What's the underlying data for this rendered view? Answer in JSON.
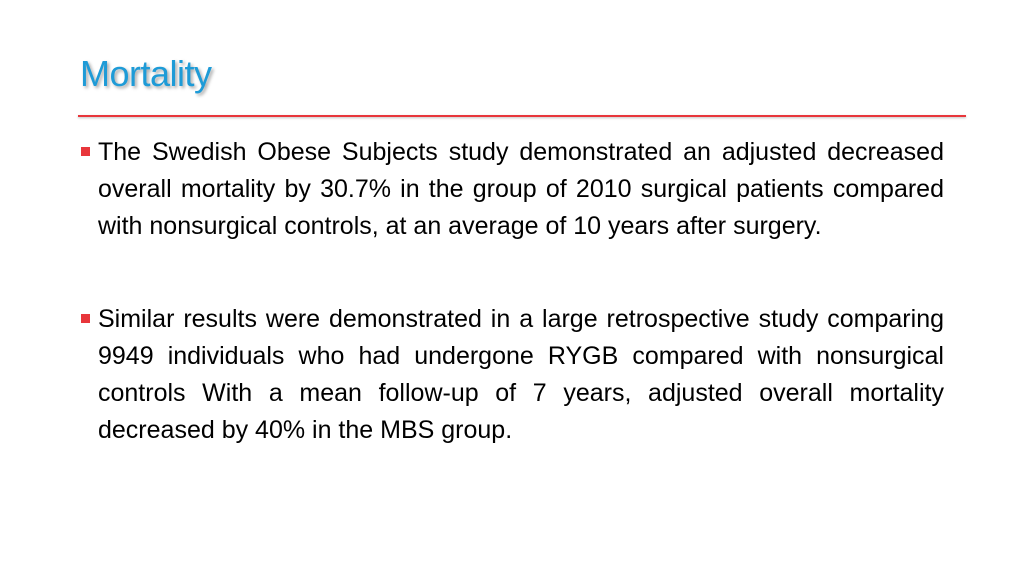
{
  "slide": {
    "title": "Mortality",
    "bullets": [
      {
        "text": "The Swedish Obese Subjects study demonstrated an adjusted decreased overall mortality by 30.7% in the group of 2010 surgical patients compared with nonsurgical controls, at an average of 10 years after surgery."
      },
      {
        "text": "Similar results were demonstrated in a large retrospective study comparing 9949 individuals who had undergone RYGB compared with nonsurgical controls With a mean follow-up of 7 years, adjusted overall mortality decreased by 40% in the MBS group."
      }
    ]
  },
  "colors": {
    "title": "#1e9bd7",
    "rule": "#e8363b",
    "bullet_marker": "#e8363b",
    "text": "#000000"
  },
  "icons": {
    "bullet": "square-bullet-icon"
  }
}
